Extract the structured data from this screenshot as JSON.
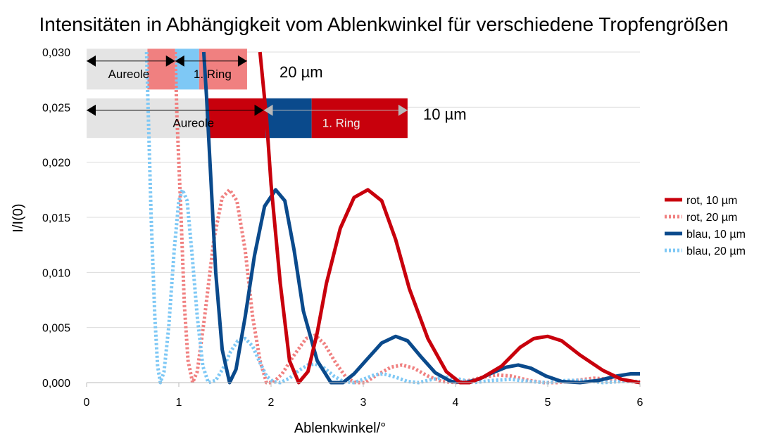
{
  "colors": {
    "rot": "#c8000c",
    "rot_light": "#f08080",
    "blau": "#0a4a8c",
    "blau_light": "#7ec8f5",
    "grey_band": "#e4e4e4",
    "grid": "#dcdcdc"
  },
  "chart_data": {
    "type": "line",
    "title": "Intensitäten in Abhängigkeit vom Ablenkwinkel für verschiedene Tropfengrößen",
    "xlabel": "Ablenkwinkel/°",
    "ylabel": "I/I(0)",
    "xlim": [
      0,
      6
    ],
    "ylim": [
      0,
      0.03
    ],
    "x_ticks": [
      "0",
      "1",
      "2",
      "3",
      "4",
      "5",
      "6"
    ],
    "y_ticks": [
      "0,000",
      "0,005",
      "0,010",
      "0,015",
      "0,020",
      "0,025",
      "0,030"
    ],
    "grid": "horizontal",
    "legend_position": "right",
    "series": [
      {
        "name": "rot, 10 µm",
        "style": "solid",
        "color": "#c8000c",
        "points": [
          [
            1.88,
            0.03
          ],
          [
            1.95,
            0.024
          ],
          [
            2.0,
            0.018
          ],
          [
            2.1,
            0.009
          ],
          [
            2.2,
            0.002
          ],
          [
            2.3,
            0.0
          ],
          [
            2.4,
            0.001
          ],
          [
            2.5,
            0.0045
          ],
          [
            2.6,
            0.009
          ],
          [
            2.75,
            0.014
          ],
          [
            2.9,
            0.0168
          ],
          [
            3.05,
            0.0175
          ],
          [
            3.2,
            0.0165
          ],
          [
            3.35,
            0.013
          ],
          [
            3.5,
            0.0085
          ],
          [
            3.7,
            0.004
          ],
          [
            3.9,
            0.001
          ],
          [
            4.05,
            0.0
          ],
          [
            4.15,
            0.0
          ],
          [
            4.3,
            0.0005
          ],
          [
            4.5,
            0.0015
          ],
          [
            4.7,
            0.0032
          ],
          [
            4.85,
            0.004
          ],
          [
            5.0,
            0.0042
          ],
          [
            5.15,
            0.0038
          ],
          [
            5.35,
            0.0025
          ],
          [
            5.6,
            0.0011
          ],
          [
            5.8,
            0.0003
          ],
          [
            6.0,
            0.0
          ]
        ]
      },
      {
        "name": "rot, 20 µm",
        "style": "dotted",
        "color": "#f08080",
        "points": [
          [
            0.96,
            0.03
          ],
          [
            0.98,
            0.024
          ],
          [
            1.02,
            0.016
          ],
          [
            1.06,
            0.007
          ],
          [
            1.1,
            0.002
          ],
          [
            1.15,
            0.0
          ],
          [
            1.2,
            0.001
          ],
          [
            1.28,
            0.006
          ],
          [
            1.38,
            0.013
          ],
          [
            1.47,
            0.0168
          ],
          [
            1.55,
            0.0175
          ],
          [
            1.63,
            0.0165
          ],
          [
            1.72,
            0.012
          ],
          [
            1.8,
            0.006
          ],
          [
            1.88,
            0.002
          ],
          [
            1.95,
            0.0
          ],
          [
            2.02,
            0.0
          ],
          [
            2.12,
            0.0008
          ],
          [
            2.25,
            0.0025
          ],
          [
            2.38,
            0.004
          ],
          [
            2.48,
            0.0043
          ],
          [
            2.58,
            0.0035
          ],
          [
            2.7,
            0.0018
          ],
          [
            2.82,
            0.0004
          ],
          [
            2.92,
            0.0
          ],
          [
            3.02,
            0.0
          ],
          [
            3.15,
            0.0007
          ],
          [
            3.3,
            0.0014
          ],
          [
            3.42,
            0.0016
          ],
          [
            3.55,
            0.0013
          ],
          [
            3.7,
            0.0006
          ],
          [
            3.85,
            0.0001
          ],
          [
            4.0,
            0.0
          ],
          [
            4.15,
            0.0002
          ],
          [
            4.3,
            0.0005
          ],
          [
            4.45,
            0.0007
          ],
          [
            4.6,
            0.0006
          ],
          [
            4.8,
            0.0002
          ],
          [
            4.95,
            0.0
          ],
          [
            5.1,
            0.0
          ],
          [
            5.3,
            0.0002
          ],
          [
            5.5,
            0.0004
          ],
          [
            5.7,
            0.0003
          ],
          [
            5.9,
            0.0001
          ],
          [
            6.0,
            0.0
          ]
        ]
      },
      {
        "name": "blau, 10 µm",
        "style": "solid",
        "color": "#0a4a8c",
        "points": [
          [
            1.27,
            0.03
          ],
          [
            1.3,
            0.026
          ],
          [
            1.35,
            0.018
          ],
          [
            1.4,
            0.01
          ],
          [
            1.47,
            0.003
          ],
          [
            1.55,
            0.0
          ],
          [
            1.62,
            0.0012
          ],
          [
            1.72,
            0.006
          ],
          [
            1.82,
            0.0115
          ],
          [
            1.93,
            0.016
          ],
          [
            2.05,
            0.0175
          ],
          [
            2.15,
            0.0165
          ],
          [
            2.25,
            0.012
          ],
          [
            2.35,
            0.0065
          ],
          [
            2.5,
            0.002
          ],
          [
            2.65,
            0.0
          ],
          [
            2.78,
            0.0
          ],
          [
            2.9,
            0.0008
          ],
          [
            3.05,
            0.0022
          ],
          [
            3.2,
            0.0036
          ],
          [
            3.35,
            0.0042
          ],
          [
            3.48,
            0.0038
          ],
          [
            3.62,
            0.0024
          ],
          [
            3.78,
            0.0009
          ],
          [
            3.95,
            0.0001
          ],
          [
            4.1,
            0.0
          ],
          [
            4.25,
            0.0003
          ],
          [
            4.4,
            0.0009
          ],
          [
            4.55,
            0.0014
          ],
          [
            4.68,
            0.0016
          ],
          [
            4.82,
            0.0013
          ],
          [
            4.98,
            0.0006
          ],
          [
            5.15,
            0.0001
          ],
          [
            5.35,
            0.0
          ],
          [
            5.55,
            0.0002
          ],
          [
            5.75,
            0.0006
          ],
          [
            5.9,
            0.0008
          ],
          [
            6.0,
            0.0008
          ]
        ]
      },
      {
        "name": "blau, 20 µm",
        "style": "dotted",
        "color": "#7ec8f5",
        "points": [
          [
            0.65,
            0.03
          ],
          [
            0.67,
            0.024
          ],
          [
            0.7,
            0.015
          ],
          [
            0.74,
            0.006
          ],
          [
            0.77,
            0.0015
          ],
          [
            0.8,
            0.0
          ],
          [
            0.84,
            0.001
          ],
          [
            0.89,
            0.005
          ],
          [
            0.95,
            0.012
          ],
          [
            1.0,
            0.0165
          ],
          [
            1.04,
            0.0175
          ],
          [
            1.09,
            0.0165
          ],
          [
            1.14,
            0.012
          ],
          [
            1.2,
            0.006
          ],
          [
            1.26,
            0.0015
          ],
          [
            1.32,
            0.0
          ],
          [
            1.4,
            0.0002
          ],
          [
            1.48,
            0.0013
          ],
          [
            1.56,
            0.0028
          ],
          [
            1.64,
            0.0038
          ],
          [
            1.72,
            0.004
          ],
          [
            1.8,
            0.0033
          ],
          [
            1.88,
            0.0018
          ],
          [
            1.95,
            0.0006
          ],
          [
            2.02,
            0.0001
          ],
          [
            2.1,
            0.0
          ],
          [
            2.2,
            0.0004
          ],
          [
            2.3,
            0.0011
          ],
          [
            2.4,
            0.0016
          ],
          [
            2.48,
            0.0017
          ],
          [
            2.58,
            0.0013
          ],
          [
            2.68,
            0.0006
          ],
          [
            2.78,
            0.0001
          ],
          [
            2.9,
            0.0
          ],
          [
            3.0,
            0.0003
          ],
          [
            3.12,
            0.0007
          ],
          [
            3.22,
            0.0008
          ],
          [
            3.35,
            0.0005
          ],
          [
            3.48,
            0.0001
          ],
          [
            3.6,
            0.0
          ],
          [
            3.75,
            0.0003
          ],
          [
            3.9,
            0.0005
          ],
          [
            4.05,
            0.0003
          ],
          [
            4.2,
            0.0
          ],
          [
            4.4,
            0.0002
          ],
          [
            4.6,
            0.0003
          ],
          [
            4.8,
            0.0001
          ],
          [
            5.0,
            0.0
          ],
          [
            5.2,
            0.0002
          ],
          [
            5.4,
            0.0002
          ],
          [
            5.6,
            0.0
          ],
          [
            5.8,
            0.0001
          ],
          [
            6.0,
            0.0001
          ]
        ]
      }
    ],
    "annotations": {
      "band_20": {
        "label": "20 µm",
        "aureole_label": "Aureole",
        "ring_label": "1. Ring",
        "y_range": [
          0.0266,
          0.0303
        ],
        "grey": [
          0.0,
          0.66
        ],
        "segments": [
          {
            "from": 0.66,
            "to": 0.96,
            "color": "#f08080"
          },
          {
            "from": 0.96,
            "to": 1.22,
            "color": "#7ec8f5"
          },
          {
            "from": 1.22,
            "to": 1.74,
            "color": "#f08080"
          }
        ],
        "arrow_aureole": [
          0.0,
          0.96
        ],
        "arrow_ring": [
          0.96,
          1.74
        ]
      },
      "band_10": {
        "label": "10 µm",
        "aureole_label": "Aureole",
        "ring_label": "1. Ring",
        "y_range": [
          0.0222,
          0.0258
        ],
        "grey": [
          0.0,
          1.32
        ],
        "segments": [
          {
            "from": 1.32,
            "to": 1.94,
            "color": "#c8000c"
          },
          {
            "from": 1.94,
            "to": 2.44,
            "color": "#0a4a8c"
          },
          {
            "from": 2.44,
            "to": 3.48,
            "color": "#c8000c"
          }
        ],
        "arrow_aureole": [
          0.0,
          1.92
        ],
        "arrow_ring": [
          1.92,
          3.48
        ]
      }
    }
  }
}
